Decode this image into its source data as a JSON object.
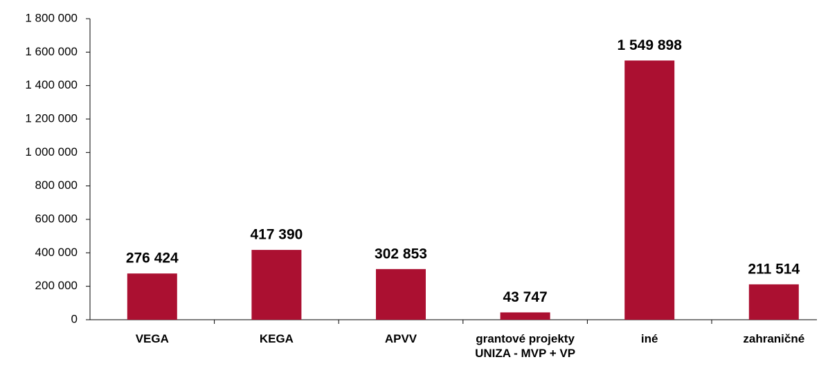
{
  "chart_data": {
    "type": "bar",
    "categories": [
      "VEGA",
      "KEGA",
      "APVV",
      "grantové projekty UNIZA - MVP + VP",
      "iné",
      "zahraničné"
    ],
    "values": [
      276424,
      417390,
      302853,
      43747,
      1549898,
      211514
    ],
    "value_labels": [
      "276 424",
      "417 390",
      "302 853",
      "43 747",
      "1 549 898",
      "211 514"
    ],
    "color": "#ab1031",
    "ylim": [
      0,
      1800000
    ],
    "yticks": [
      0,
      {
        "value": 200000,
        "label": "200 000"
      },
      {
        "value": 400000,
        "label": "400 000"
      },
      {
        "value": 600000,
        "label": "600 000"
      },
      {
        "value": 800000,
        "label": "800 000"
      },
      {
        "value": 1000000,
        "label": "1 000 000"
      },
      {
        "value": 1200000,
        "label": "1 200 000"
      },
      {
        "value": 1400000,
        "label": "1 400 000"
      },
      {
        "value": 1600000,
        "label": "1 600 000"
      },
      {
        "value": 1800000,
        "label": "1 800 000"
      }
    ],
    "grid": false
  }
}
